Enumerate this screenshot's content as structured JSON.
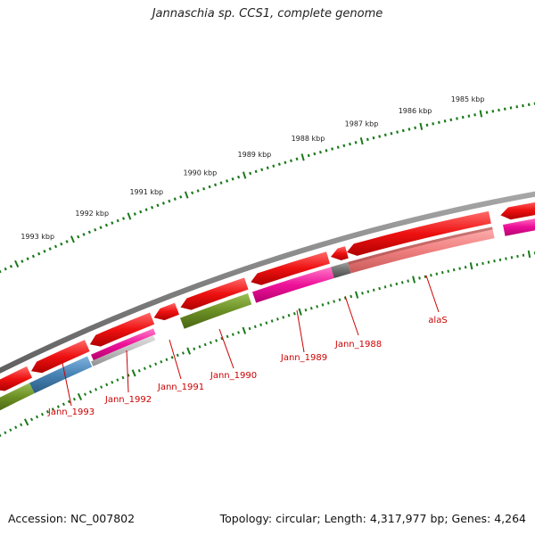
{
  "title": "Jannaschia sp. CCS1, complete genome",
  "footer": {
    "accession": "Accession: NC_007802",
    "topology": "Topology: circular; Length: 4,317,977 bp; Genes: 4,264"
  },
  "scale_labels": [
    "1985 kbp",
    "1986 kbp",
    "1987 kbp",
    "1988 kbp",
    "1989 kbp",
    "1990 kbp",
    "1991 kbp",
    "1992 kbp",
    "1993 kbp"
  ],
  "gene_labels": [
    "alaS",
    "Jann_1988",
    "Jann_1989",
    "Jann_1990",
    "Jann_1991",
    "Jann_1992",
    "Jann_1993"
  ],
  "colors": {
    "backbone": "#808080",
    "gene_red": "#ee1111",
    "magenta": "#ee1199",
    "olive": "#6b8e23",
    "steelblue": "#4682b4",
    "salmon": "#f08080",
    "gray_feature": "#707070",
    "tick_green": "#1a7a1a",
    "label_red": "#cc0000"
  }
}
